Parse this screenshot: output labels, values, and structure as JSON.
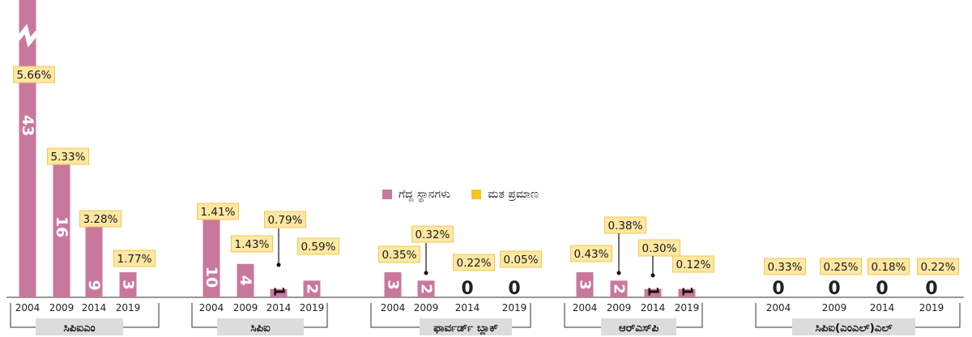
{
  "legend": {
    "seats": {
      "label": "ಗೆದ್ದ ಸ್ಥಾನಗಳು",
      "color": "#c9789d"
    },
    "vote_share": {
      "label": "ಮತ ಪ್ರಮಾಣ",
      "color": "#f7c326"
    }
  },
  "colors": {
    "bar": "#c9789d",
    "label_bg": "#fde7a3",
    "label_border": "#f2c94c",
    "group_bg": "#dcdcdc"
  },
  "chart_data": {
    "type": "bar",
    "axis_break_on": "ಸಿಪಿಐಎಂ 2004",
    "groups": [
      {
        "name": "ಸಿಪಿಐಎಂ",
        "years": [
          "2004",
          "2009",
          "2014",
          "2019"
        ],
        "seats": [
          43,
          16,
          9,
          3
        ],
        "vote_share": [
          "5.66%",
          "5.33%",
          "3.28%",
          "1.77%"
        ]
      },
      {
        "name": "ಸಿಪಿಐ",
        "years": [
          "2004",
          "2009",
          "2014",
          "2019"
        ],
        "seats": [
          10,
          4,
          1,
          2
        ],
        "vote_share": [
          "1.41%",
          "1.43%",
          "0.79%",
          "0.59%"
        ]
      },
      {
        "name": "ಫಾರ್ವರ್ಡ್ ಬ್ಲಾಕ್",
        "years": [
          "2004",
          "2009",
          "2014",
          "2019"
        ],
        "seats": [
          3,
          2,
          0,
          0
        ],
        "vote_share": [
          "0.35%",
          "0.32%",
          "0.22%",
          "0.05%"
        ]
      },
      {
        "name": "ಆರ್‌ಎಸ್‌ಪಿ",
        "years": [
          "2004",
          "2009",
          "2014",
          "2019"
        ],
        "seats": [
          3,
          2,
          1,
          1
        ],
        "vote_share": [
          "0.43%",
          "0.38%",
          "0.30%",
          "0.12%"
        ]
      },
      {
        "name": "ಸಿಪಿಐ(ಎಂಎಲ್)ಎಲ್",
        "years": [
          "2004",
          "2009",
          "2014",
          "2019"
        ],
        "seats": [
          0,
          0,
          0,
          0
        ],
        "vote_share": [
          "0.33%",
          "0.25%",
          "0.18%",
          "0.22%"
        ]
      }
    ]
  }
}
